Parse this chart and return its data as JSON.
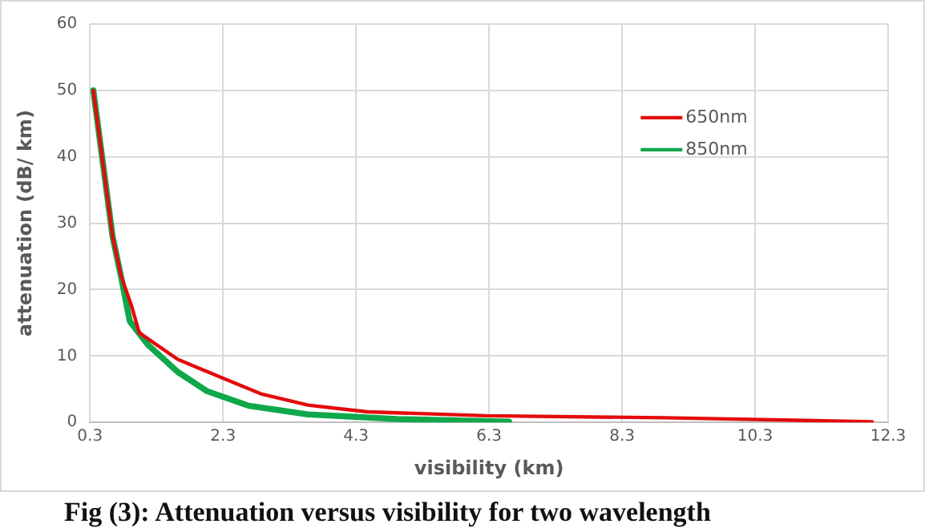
{
  "chart_data": {
    "type": "line",
    "xlabel": "visibility (km)",
    "ylabel": "attenuation (dB/ km)",
    "xlim": [
      0.3,
      12.3
    ],
    "xticks": [
      0.3,
      2.3,
      4.3,
      6.3,
      8.3,
      10.3,
      12.3
    ],
    "ylim": [
      0,
      60
    ],
    "yticks": [
      0,
      10,
      20,
      30,
      40,
      50,
      60
    ],
    "grid": true,
    "legend": "top right",
    "marker": "none",
    "line_style": "solid",
    "series": [
      {
        "name": "650nm",
        "color": "#e30b0b",
        "x": [
          0.35,
          0.64,
          0.77,
          0.93,
          1.04,
          1.62,
          2.24,
          2.87,
          3.58,
          4.47,
          6.25,
          8.93,
          12.06
        ],
        "values": [
          50,
          28,
          22,
          17.4,
          13.5,
          9.5,
          6.9,
          4.3,
          2.6,
          1.6,
          1.0,
          0.7,
          0.1
        ]
      },
      {
        "name": "850nm",
        "color": "#0fa84b",
        "x": [
          0.35,
          0.64,
          0.77,
          0.9,
          1.17,
          1.62,
          2.06,
          2.69,
          3.58,
          4.92,
          6.6
        ],
        "values": [
          50,
          28,
          21.8,
          15.2,
          11.7,
          7.6,
          4.7,
          2.5,
          1.2,
          0.5,
          0.1
        ]
      }
    ],
    "annotations": [
      "Fig (3): Attenuation versus visibility for two wavelength"
    ]
  }
}
